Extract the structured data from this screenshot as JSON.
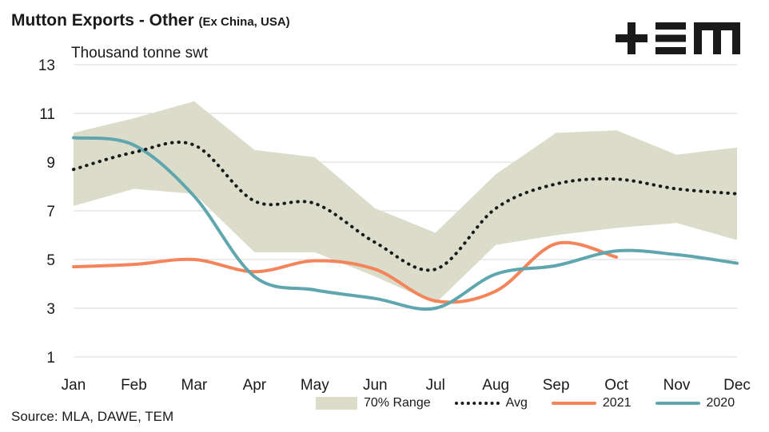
{
  "header": {
    "title": "Mutton Exports - Other",
    "subtitle": "(Ex China, USA)",
    "unit": "Thousand tonne swt",
    "source": "Source: MLA, DAWE, TEM",
    "logo_text": "+≡M"
  },
  "colors": {
    "range": "#dbdcca",
    "avg": "#1a1a1a",
    "s2021": "#f4845a",
    "s2020": "#5fa6ae",
    "grid": "#d9d9d9"
  },
  "chart_data": {
    "type": "line",
    "title": "Mutton Exports - Other (Ex China, USA)",
    "ylabel": "Thousand tonne swt",
    "categories": [
      "Jan",
      "Feb",
      "Mar",
      "Apr",
      "May",
      "Jun",
      "Jul",
      "Aug",
      "Sep",
      "Oct",
      "Nov",
      "Dec"
    ],
    "ylim": [
      1,
      13
    ],
    "yticks": [
      "13",
      "11",
      "9",
      "7",
      "5",
      "3",
      "1"
    ],
    "grid": true,
    "legend_position": "bottom",
    "range": {
      "name": "70% Range",
      "upper": [
        10.2,
        10.8,
        11.5,
        9.5,
        9.2,
        7.1,
        6.1,
        8.5,
        10.2,
        10.3,
        9.3,
        9.6
      ],
      "lower": [
        7.2,
        7.9,
        7.7,
        5.3,
        5.3,
        4.3,
        3.2,
        5.6,
        6.0,
        6.3,
        6.5,
        5.8
      ]
    },
    "series": [
      {
        "name": "Avg",
        "style": "dotted",
        "values": [
          8.7,
          9.4,
          9.7,
          7.4,
          7.3,
          5.7,
          4.6,
          7.1,
          8.1,
          8.3,
          7.9,
          7.7
        ]
      },
      {
        "name": "2021",
        "style": "solid",
        "values": [
          4.7,
          4.8,
          5.0,
          4.5,
          4.95,
          4.6,
          3.3,
          3.7,
          5.65,
          5.1,
          null,
          null
        ]
      },
      {
        "name": "2020",
        "style": "solid",
        "values": [
          10.0,
          9.7,
          7.6,
          4.3,
          3.75,
          3.4,
          3.0,
          4.4,
          4.75,
          5.35,
          5.2,
          4.85
        ]
      }
    ]
  }
}
